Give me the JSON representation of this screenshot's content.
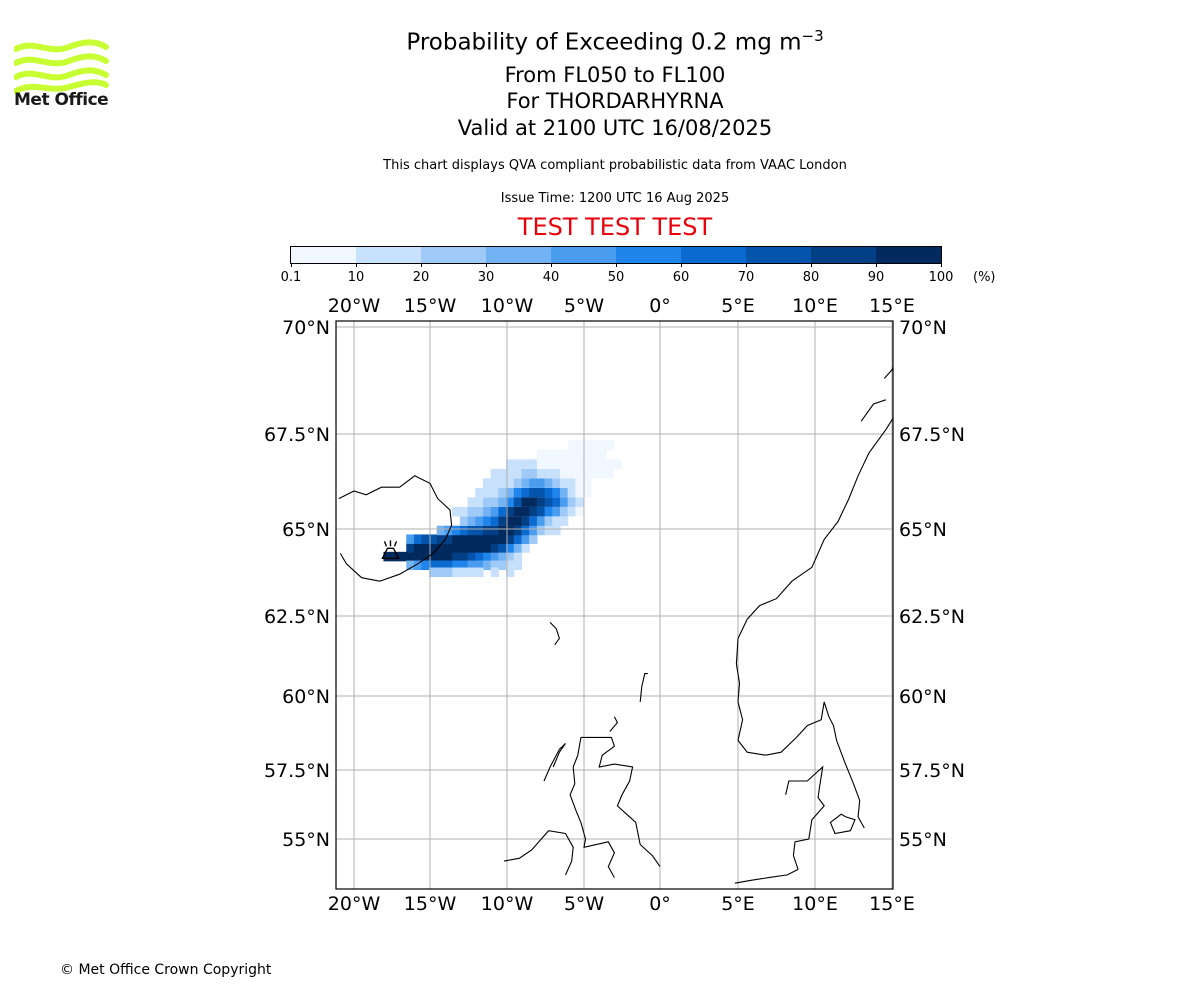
{
  "logo": {
    "name": "Met Office",
    "color": "#c8ff32"
  },
  "title": {
    "line1": "Probability of Exceeding 0.2 mg m",
    "line1_sup": "−3",
    "line2": "From FL050 to FL100",
    "line3": "For THORDARHYRNA",
    "line4": "Valid at 2100 UTC 16/08/2025",
    "source_note": "This chart displays QVA compliant probabilistic data from VAAC London",
    "issue_time": "Issue Time: 1200 UTC 16 Aug 2025",
    "test_banner": "TEST TEST TEST"
  },
  "colorbar": {
    "ticks": [
      "0.1",
      "10",
      "20",
      "30",
      "40",
      "50",
      "60",
      "70",
      "80",
      "90",
      "100"
    ],
    "unit": "(%)",
    "colors": [
      "#f0f7ff",
      "#c7e0fb",
      "#9fcaf7",
      "#73b3f3",
      "#4a9cef",
      "#1f84eb",
      "#0b6ad0",
      "#0554ab",
      "#033f85",
      "#022a5e"
    ]
  },
  "map": {
    "lon_labels": [
      "20°W",
      "15°W",
      "10°W",
      "5°W",
      "0°",
      "5°E",
      "10°E",
      "15°E"
    ],
    "lon_values": [
      -20,
      -15,
      -10,
      -5,
      0,
      5,
      10,
      15
    ],
    "lat_labels": [
      "70°N",
      "67.5°N",
      "65°N",
      "62.5°N",
      "60°N",
      "57.5°N",
      "55°N"
    ],
    "lat_values": [
      70,
      67.5,
      65,
      62.5,
      60,
      57.5,
      55
    ],
    "extent": {
      "lon": [
        -21.1,
        15.3
      ],
      "lat": [
        53.5,
        70.2
      ]
    },
    "volcano": {
      "name": "THORDARHYRNA",
      "lon": -17.6,
      "lat": 64.3,
      "icon": "volcano-icon"
    },
    "plume_cells": [
      [
        -17.8,
        64.2,
        9
      ],
      [
        -17.3,
        64.2,
        9
      ],
      [
        -16.8,
        64.2,
        9
      ],
      [
        -16.3,
        64.2,
        9
      ],
      [
        -15.8,
        64.2,
        9
      ],
      [
        -15.3,
        64.2,
        9
      ],
      [
        -14.8,
        64.2,
        9
      ],
      [
        -14.3,
        64.2,
        9
      ],
      [
        -13.8,
        64.2,
        9
      ],
      [
        -13.3,
        64.2,
        8
      ],
      [
        -12.8,
        64.2,
        8
      ],
      [
        -12.3,
        64.2,
        7
      ],
      [
        -11.8,
        64.2,
        6
      ],
      [
        -11.3,
        64.2,
        5
      ],
      [
        -10.8,
        64.2,
        4
      ],
      [
        -10.3,
        64.2,
        3
      ],
      [
        -9.8,
        64.2,
        2
      ],
      [
        -9.3,
        64.2,
        1
      ],
      [
        -16.3,
        64.45,
        8
      ],
      [
        -15.8,
        64.45,
        9
      ],
      [
        -15.3,
        64.45,
        9
      ],
      [
        -14.8,
        64.45,
        9
      ],
      [
        -14.3,
        64.45,
        9
      ],
      [
        -13.8,
        64.45,
        9
      ],
      [
        -13.3,
        64.45,
        9
      ],
      [
        -12.8,
        64.45,
        9
      ],
      [
        -12.3,
        64.45,
        9
      ],
      [
        -11.8,
        64.45,
        9
      ],
      [
        -11.3,
        64.45,
        9
      ],
      [
        -10.8,
        64.45,
        8
      ],
      [
        -10.3,
        64.45,
        7
      ],
      [
        -9.8,
        64.45,
        5
      ],
      [
        -9.3,
        64.45,
        3
      ],
      [
        -8.8,
        64.45,
        1
      ],
      [
        -16.3,
        63.95,
        3
      ],
      [
        -15.8,
        63.95,
        4
      ],
      [
        -15.3,
        63.95,
        5
      ],
      [
        -14.8,
        63.95,
        6
      ],
      [
        -14.3,
        63.95,
        6
      ],
      [
        -13.8,
        63.95,
        6
      ],
      [
        -13.3,
        63.95,
        5
      ],
      [
        -12.8,
        63.95,
        5
      ],
      [
        -12.3,
        63.95,
        4
      ],
      [
        -11.8,
        63.95,
        4
      ],
      [
        -11.3,
        63.95,
        3
      ],
      [
        -10.8,
        63.95,
        2
      ],
      [
        -10.3,
        63.95,
        2
      ],
      [
        -9.8,
        63.95,
        1
      ],
      [
        -9.3,
        63.95,
        1
      ],
      [
        -14.8,
        63.75,
        2
      ],
      [
        -14.3,
        63.75,
        2
      ],
      [
        -13.8,
        63.75,
        2
      ],
      [
        -13.3,
        63.75,
        1
      ],
      [
        -12.8,
        63.75,
        1
      ],
      [
        -12.3,
        63.75,
        1
      ],
      [
        -11.8,
        63.75,
        1
      ],
      [
        -10.8,
        63.75,
        1
      ],
      [
        -9.8,
        63.75,
        1
      ],
      [
        -16.3,
        64.7,
        4
      ],
      [
        -15.8,
        64.7,
        6
      ],
      [
        -15.3,
        64.7,
        7
      ],
      [
        -14.8,
        64.7,
        7
      ],
      [
        -14.3,
        64.7,
        8
      ],
      [
        -13.8,
        64.7,
        8
      ],
      [
        -13.3,
        64.7,
        9
      ],
      [
        -12.8,
        64.7,
        9
      ],
      [
        -12.3,
        64.7,
        9
      ],
      [
        -11.8,
        64.7,
        9
      ],
      [
        -11.3,
        64.7,
        9
      ],
      [
        -10.8,
        64.7,
        9
      ],
      [
        -10.3,
        64.7,
        9
      ],
      [
        -9.8,
        64.7,
        8
      ],
      [
        -9.3,
        64.7,
        6
      ],
      [
        -8.8,
        64.7,
        4
      ],
      [
        -8.3,
        64.7,
        2
      ],
      [
        -14.3,
        64.95,
        3
      ],
      [
        -13.8,
        64.95,
        4
      ],
      [
        -13.3,
        64.95,
        5
      ],
      [
        -12.8,
        64.95,
        6
      ],
      [
        -12.3,
        64.95,
        7
      ],
      [
        -11.8,
        64.95,
        7
      ],
      [
        -11.3,
        64.95,
        8
      ],
      [
        -10.8,
        64.95,
        8
      ],
      [
        -10.3,
        64.95,
        9
      ],
      [
        -9.8,
        64.95,
        9
      ],
      [
        -9.3,
        64.95,
        8
      ],
      [
        -8.8,
        64.95,
        6
      ],
      [
        -8.3,
        64.95,
        4
      ],
      [
        -7.8,
        64.95,
        2
      ],
      [
        -7.3,
        64.95,
        1
      ],
      [
        -6.8,
        64.95,
        1
      ],
      [
        -12.8,
        65.2,
        2
      ],
      [
        -12.3,
        65.2,
        3
      ],
      [
        -11.8,
        65.2,
        4
      ],
      [
        -11.3,
        65.2,
        5
      ],
      [
        -10.8,
        65.2,
        6
      ],
      [
        -10.3,
        65.2,
        8
      ],
      [
        -9.8,
        65.2,
        9
      ],
      [
        -9.3,
        65.2,
        9
      ],
      [
        -8.8,
        65.2,
        8
      ],
      [
        -8.3,
        65.2,
        6
      ],
      [
        -7.8,
        65.2,
        4
      ],
      [
        -7.3,
        65.2,
        2
      ],
      [
        -6.8,
        65.2,
        1
      ],
      [
        -6.3,
        65.2,
        1
      ],
      [
        -13.3,
        65.45,
        1
      ],
      [
        -12.8,
        65.45,
        1
      ],
      [
        -12.3,
        65.45,
        2
      ],
      [
        -11.8,
        65.45,
        2
      ],
      [
        -11.3,
        65.45,
        3
      ],
      [
        -10.8,
        65.45,
        4
      ],
      [
        -10.3,
        65.45,
        6
      ],
      [
        -9.8,
        65.45,
        8
      ],
      [
        -9.3,
        65.45,
        9
      ],
      [
        -8.8,
        65.45,
        9
      ],
      [
        -8.3,
        65.45,
        8
      ],
      [
        -7.8,
        65.45,
        7
      ],
      [
        -7.3,
        65.45,
        5
      ],
      [
        -6.8,
        65.45,
        4
      ],
      [
        -6.3,
        65.45,
        2
      ],
      [
        -5.8,
        65.45,
        1
      ],
      [
        -5.3,
        65.45,
        0
      ],
      [
        -12.3,
        65.7,
        1
      ],
      [
        -11.8,
        65.7,
        1
      ],
      [
        -11.3,
        65.7,
        2
      ],
      [
        -10.8,
        65.7,
        2
      ],
      [
        -10.3,
        65.7,
        3
      ],
      [
        -9.8,
        65.7,
        5
      ],
      [
        -9.3,
        65.7,
        7
      ],
      [
        -8.8,
        65.7,
        9
      ],
      [
        -8.3,
        65.7,
        9
      ],
      [
        -7.8,
        65.7,
        8
      ],
      [
        -7.3,
        65.7,
        7
      ],
      [
        -6.8,
        65.7,
        6
      ],
      [
        -6.3,
        65.7,
        4
      ],
      [
        -5.8,
        65.7,
        2
      ],
      [
        -5.3,
        65.7,
        1
      ],
      [
        -11.8,
        65.95,
        1
      ],
      [
        -11.3,
        65.95,
        1
      ],
      [
        -10.8,
        65.95,
        1
      ],
      [
        -10.3,
        65.95,
        2
      ],
      [
        -9.8,
        65.95,
        3
      ],
      [
        -9.3,
        65.95,
        5
      ],
      [
        -8.8,
        65.95,
        6
      ],
      [
        -8.3,
        65.95,
        7
      ],
      [
        -7.8,
        65.95,
        7
      ],
      [
        -7.3,
        65.95,
        6
      ],
      [
        -6.8,
        65.95,
        5
      ],
      [
        -6.3,
        65.95,
        3
      ],
      [
        -5.8,
        65.95,
        1
      ],
      [
        -5.3,
        65.95,
        0
      ],
      [
        -4.8,
        65.95,
        0
      ],
      [
        -11.3,
        66.2,
        1
      ],
      [
        -10.8,
        66.2,
        1
      ],
      [
        -10.3,
        66.2,
        1
      ],
      [
        -9.8,
        66.2,
        1
      ],
      [
        -9.3,
        66.2,
        2
      ],
      [
        -8.8,
        66.2,
        3
      ],
      [
        -8.3,
        66.2,
        4
      ],
      [
        -7.8,
        66.2,
        4
      ],
      [
        -7.3,
        66.2,
        3
      ],
      [
        -6.8,
        66.2,
        2
      ],
      [
        -6.3,
        66.2,
        1
      ],
      [
        -5.8,
        66.2,
        1
      ],
      [
        -5.3,
        66.2,
        0
      ],
      [
        -4.8,
        66.2,
        0
      ],
      [
        -10.8,
        66.45,
        1
      ],
      [
        -10.3,
        66.45,
        1
      ],
      [
        -9.8,
        66.45,
        1
      ],
      [
        -9.3,
        66.45,
        1
      ],
      [
        -8.8,
        66.45,
        2
      ],
      [
        -8.3,
        66.45,
        2
      ],
      [
        -7.8,
        66.45,
        1
      ],
      [
        -7.3,
        66.45,
        1
      ],
      [
        -6.8,
        66.45,
        1
      ],
      [
        -6.3,
        66.45,
        0
      ],
      [
        -5.8,
        66.45,
        0
      ],
      [
        -5.3,
        66.45,
        0
      ],
      [
        -4.8,
        66.45,
        0
      ],
      [
        -4.3,
        66.45,
        0
      ],
      [
        -3.8,
        66.45,
        0
      ],
      [
        -3.3,
        66.45,
        0
      ],
      [
        -9.8,
        66.7,
        1
      ],
      [
        -9.3,
        66.7,
        1
      ],
      [
        -8.8,
        66.7,
        1
      ],
      [
        -8.3,
        66.7,
        1
      ],
      [
        -7.8,
        66.7,
        0
      ],
      [
        -7.3,
        66.7,
        0
      ],
      [
        -6.8,
        66.7,
        0
      ],
      [
        -6.3,
        66.7,
        0
      ],
      [
        -5.8,
        66.7,
        0
      ],
      [
        -5.3,
        66.7,
        0
      ],
      [
        -4.8,
        66.7,
        0
      ],
      [
        -4.3,
        66.7,
        0
      ],
      [
        -3.8,
        66.7,
        0
      ],
      [
        -3.3,
        66.7,
        0
      ],
      [
        -2.8,
        66.7,
        0
      ],
      [
        -7.8,
        66.95,
        0
      ],
      [
        -7.3,
        66.95,
        0
      ],
      [
        -6.8,
        66.95,
        0
      ],
      [
        -6.3,
        66.95,
        0
      ],
      [
        -5.8,
        66.95,
        0
      ],
      [
        -5.3,
        66.95,
        0
      ],
      [
        -4.8,
        66.95,
        0
      ],
      [
        -4.3,
        66.95,
        0
      ],
      [
        -3.8,
        66.95,
        0
      ],
      [
        -5.8,
        67.2,
        0
      ],
      [
        -5.3,
        67.2,
        0
      ],
      [
        -4.8,
        67.2,
        0
      ],
      [
        -4.3,
        67.2,
        0
      ],
      [
        -3.8,
        67.2,
        0
      ],
      [
        -3.3,
        67.2,
        0
      ]
    ]
  },
  "footer": {
    "copyright": "© Met Office Crown Copyright"
  }
}
